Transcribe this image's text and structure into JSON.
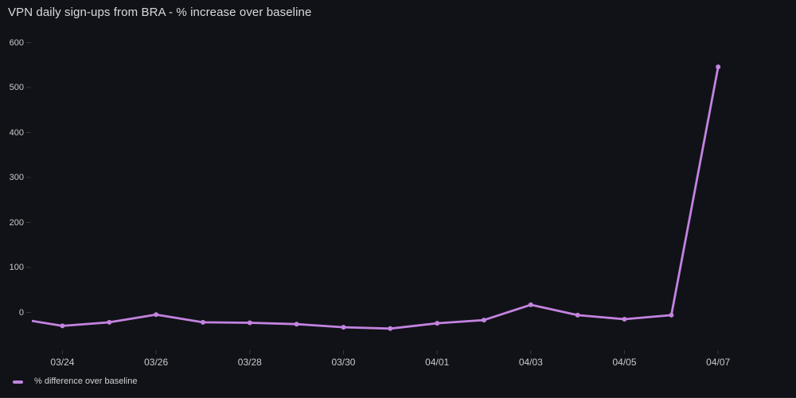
{
  "panel": {
    "title": "VPN daily sign-ups from BRA - % increase over baseline"
  },
  "legend": {
    "series_label": "% difference over baseline"
  },
  "colors": {
    "background": "#111217",
    "line": "#c383e0",
    "title_text": "#d9dadc",
    "axis_text": "#c9cacd",
    "tick_mark": "rgba(216,217,222,0.18)"
  },
  "chart_data": {
    "type": "line",
    "title": "VPN daily sign-ups from BRA - % increase over baseline",
    "categories": [
      "03/23",
      "03/24",
      "03/25",
      "03/26",
      "03/27",
      "03/28",
      "03/29",
      "03/30",
      "03/31",
      "04/01",
      "04/02",
      "04/03",
      "04/04",
      "04/05",
      "04/06",
      "04/07"
    ],
    "series": [
      {
        "name": "% difference over baseline",
        "color": "#c383e0",
        "values": [
          -13,
          -30,
          -22,
          -5,
          -22,
          -23,
          -26,
          -33,
          -36,
          -24,
          -17,
          17,
          -6,
          -15,
          -6,
          546
        ]
      }
    ],
    "x_tick_labels": [
      "03/24",
      "03/26",
      "03/28",
      "03/30",
      "04/01",
      "04/03",
      "04/05",
      "04/07"
    ],
    "y_tick_labels": [
      0,
      100,
      200,
      300,
      400,
      500,
      600
    ],
    "ylim": [
      -85,
      615
    ],
    "xlabel": "",
    "ylabel": "",
    "grid": false,
    "markers": true,
    "legend_position": "bottom-left"
  }
}
